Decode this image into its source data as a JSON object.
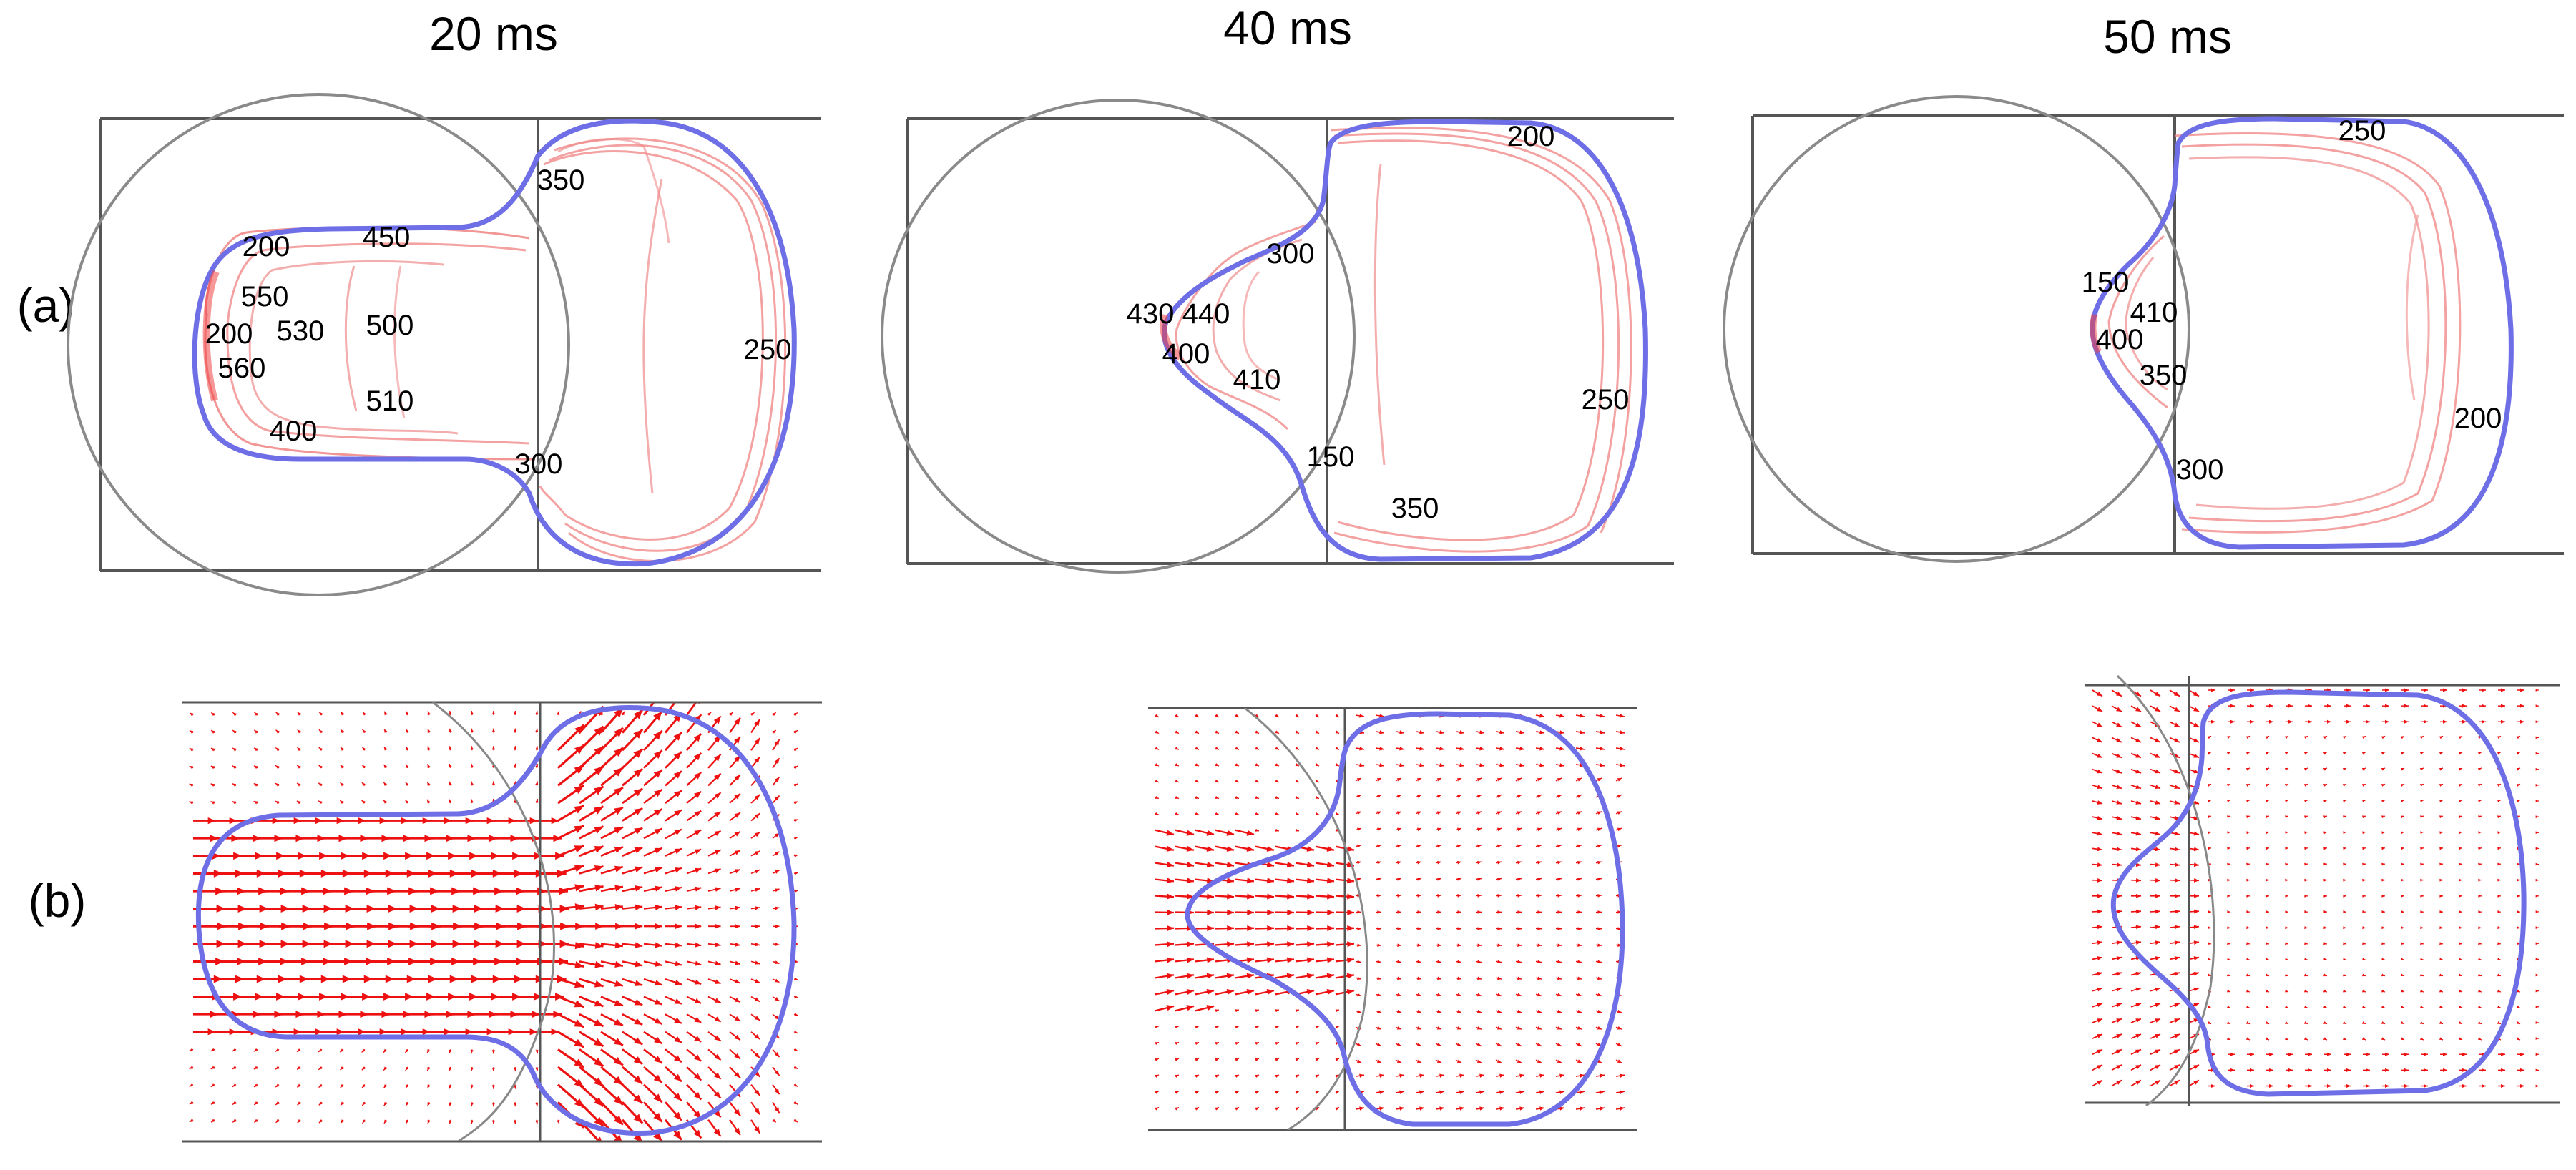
{
  "time_labels": [
    "20 ms",
    "40 ms",
    "50 ms"
  ],
  "row_labels": {
    "a": "(a)",
    "b": "(b)"
  },
  "colors": {
    "frame": "#555555",
    "circle": "#888888",
    "interface": "#6e6ee6",
    "contour": "#ee8080",
    "arrow": "#ee1111"
  },
  "panels_a": [
    {
      "contour_labels": [
        "350",
        "200",
        "450",
        "550",
        "200",
        "530",
        "500",
        "560",
        "510",
        "400",
        "300",
        "250"
      ]
    },
    {
      "contour_labels": [
        "200",
        "300",
        "430",
        "440",
        "400",
        "410",
        "250",
        "150",
        "350"
      ]
    },
    {
      "contour_labels": [
        "250",
        "150",
        "410",
        "400",
        "350",
        "200",
        "300"
      ]
    }
  ]
}
